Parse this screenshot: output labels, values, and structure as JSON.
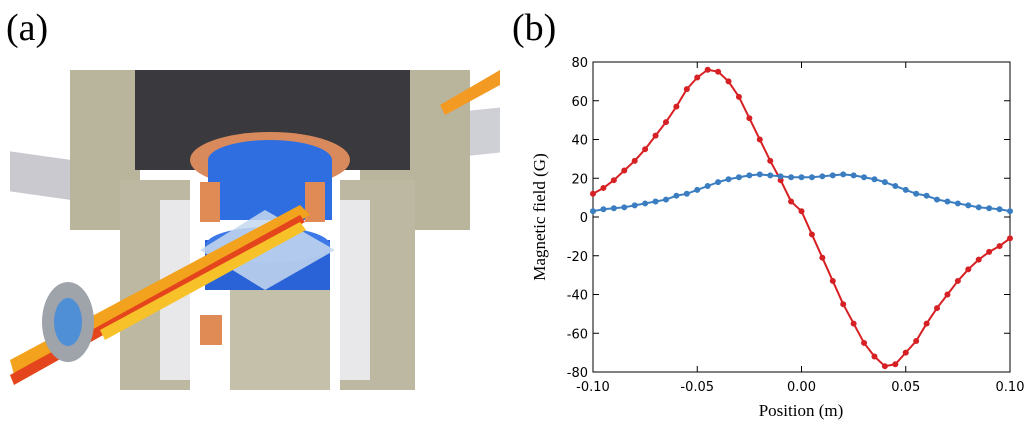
{
  "panel_labels": [
    "(a)",
    "(b)"
  ],
  "chart_data": {
    "type": "line",
    "xlabel": "Position (m)",
    "ylabel": "Magnetic field (G)",
    "x": [
      -0.1,
      -0.095,
      -0.09,
      -0.085,
      -0.08,
      -0.075,
      -0.07,
      -0.065,
      -0.06,
      -0.055,
      -0.05,
      -0.045,
      -0.04,
      -0.035,
      -0.03,
      -0.025,
      -0.02,
      -0.015,
      -0.01,
      -0.005,
      0,
      0.005,
      0.01,
      0.015,
      0.02,
      0.025,
      0.03,
      0.035,
      0.04,
      0.045,
      0.05,
      0.055,
      0.06,
      0.065,
      0.07,
      0.075,
      0.08,
      0.085,
      0.09,
      0.095,
      0.1
    ],
    "series": [
      {
        "color": "#d62023",
        "values": [
          12,
          15,
          19,
          24,
          29,
          35,
          42,
          49,
          57,
          66,
          72,
          76,
          75,
          70,
          62,
          51,
          40,
          29,
          19,
          8,
          3,
          -9,
          -21,
          -33,
          -45,
          -55,
          -65,
          -72,
          -77,
          -76,
          -70,
          -64,
          -55,
          -47,
          -40,
          -33,
          -27,
          -22,
          -18,
          -15,
          -11
        ]
      },
      {
        "color": "#3a7dc0",
        "values": [
          3,
          4,
          4.5,
          5,
          6,
          7,
          8,
          9,
          11,
          12,
          14,
          16,
          18,
          19.5,
          20.5,
          21.5,
          22,
          21.5,
          21,
          20.5,
          20.5,
          20.5,
          21,
          21.5,
          22,
          21.5,
          20.5,
          19.5,
          18,
          16,
          14,
          12,
          11,
          9,
          8,
          7,
          6,
          5,
          4.5,
          4,
          3
        ]
      }
    ],
    "xlim": [
      -0.1,
      0.1
    ],
    "xticks": [
      {
        "value": -0.1,
        "label": "-0.10"
      },
      {
        "value": -0.05,
        "label": "-0.05"
      },
      {
        "value": 0,
        "label": "0.00"
      },
      {
        "value": 0.05,
        "label": "0.05"
      },
      {
        "value": 0.1,
        "label": "0.10"
      }
    ],
    "ylim": [
      -80,
      80
    ],
    "yticks": [
      -80,
      -60,
      -40,
      -20,
      0,
      20,
      40,
      60,
      80
    ],
    "grid": false
  }
}
